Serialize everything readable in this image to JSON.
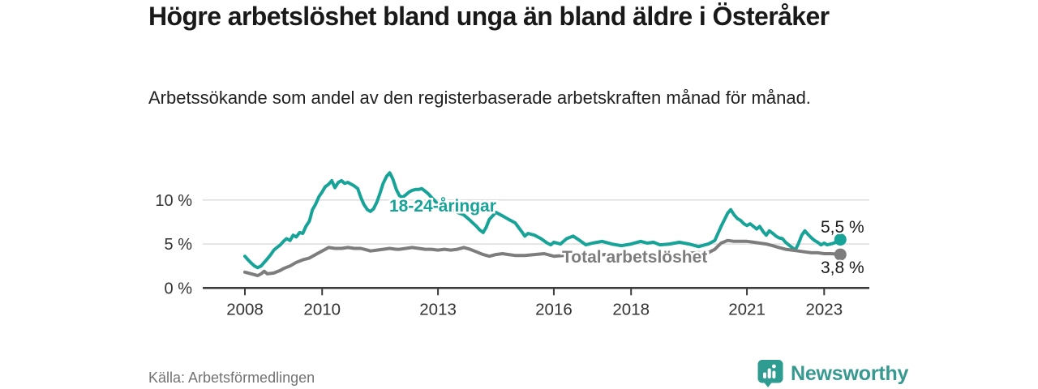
{
  "header": {
    "title": "Högre arbetslöshet bland unga än bland äldre i Österåker",
    "subtitle": "Arbetssökande som andel av den registerbaserade arbetskraften månad för månad."
  },
  "footer": {
    "source": "Källa: Arbetsförmedlingen",
    "brand": "Newsworthy",
    "logo_icon": "speech-bubble-barchart-icon"
  },
  "colors": {
    "young_series": "#17A398",
    "total_series": "#7D7D7D",
    "value_label": "#1A1A1A",
    "grid": "#DADADA",
    "axis": "#3D3D3D",
    "tick_text": "#333333",
    "title_text": "#191919",
    "source_text": "#737373",
    "brand_teal": "#2E9C90"
  },
  "chart_data": {
    "type": "line",
    "title": "Högre arbetslöshet bland unga än bland äldre i Österåker",
    "subtitle": "Arbetssökande som andel av den registerbaserade arbetskraften månad för månad.",
    "unit": "%",
    "grid": "horizontal-only",
    "xlim": [
      2007.6,
      2023.9
    ],
    "ylim": [
      0,
      13.8
    ],
    "x_ticks": [
      {
        "value": 2008,
        "label": "2008"
      },
      {
        "value": 2010,
        "label": "2010"
      },
      {
        "value": 2013,
        "label": "2013"
      },
      {
        "value": 2016,
        "label": "2016"
      },
      {
        "value": 2018,
        "label": "2018"
      },
      {
        "value": 2021,
        "label": "2021"
      },
      {
        "value": 2023,
        "label": "2023"
      }
    ],
    "y_ticks": [
      {
        "value": 0,
        "label": "0 %"
      },
      {
        "value": 5,
        "label": "5 %"
      },
      {
        "value": 10,
        "label": "10 %"
      }
    ],
    "series": [
      {
        "name": "18-24-åringar",
        "color": "#17A398",
        "end_value": 5.5,
        "end_label": "5,5 %",
        "points": [
          [
            2008.0,
            3.6
          ],
          [
            2008.08,
            3.2
          ],
          [
            2008.17,
            2.8
          ],
          [
            2008.25,
            2.5
          ],
          [
            2008.33,
            2.3
          ],
          [
            2008.42,
            2.5
          ],
          [
            2008.5,
            2.9
          ],
          [
            2008.58,
            3.3
          ],
          [
            2008.67,
            3.8
          ],
          [
            2008.75,
            4.3
          ],
          [
            2008.83,
            4.6
          ],
          [
            2008.92,
            4.9
          ],
          [
            2009.0,
            5.3
          ],
          [
            2009.08,
            5.6
          ],
          [
            2009.17,
            5.4
          ],
          [
            2009.25,
            6.0
          ],
          [
            2009.33,
            5.8
          ],
          [
            2009.42,
            6.3
          ],
          [
            2009.5,
            6.2
          ],
          [
            2009.58,
            7.0
          ],
          [
            2009.67,
            7.6
          ],
          [
            2009.75,
            8.9
          ],
          [
            2009.83,
            9.5
          ],
          [
            2009.92,
            10.4
          ],
          [
            2010.0,
            10.9
          ],
          [
            2010.08,
            11.5
          ],
          [
            2010.17,
            11.8
          ],
          [
            2010.25,
            12.2
          ],
          [
            2010.33,
            11.4
          ],
          [
            2010.42,
            12.0
          ],
          [
            2010.5,
            12.2
          ],
          [
            2010.58,
            11.9
          ],
          [
            2010.67,
            12.0
          ],
          [
            2010.75,
            11.8
          ],
          [
            2010.83,
            11.6
          ],
          [
            2010.92,
            11.3
          ],
          [
            2011.0,
            10.3
          ],
          [
            2011.08,
            9.5
          ],
          [
            2011.17,
            8.9
          ],
          [
            2011.25,
            8.7
          ],
          [
            2011.33,
            9.0
          ],
          [
            2011.42,
            9.8
          ],
          [
            2011.5,
            10.8
          ],
          [
            2011.58,
            11.9
          ],
          [
            2011.67,
            12.7
          ],
          [
            2011.75,
            13.1
          ],
          [
            2011.83,
            12.4
          ],
          [
            2011.92,
            11.2
          ],
          [
            2012.0,
            10.5
          ],
          [
            2012.08,
            10.3
          ],
          [
            2012.17,
            10.6
          ],
          [
            2012.25,
            10.9
          ],
          [
            2012.33,
            11.1
          ],
          [
            2012.42,
            11.2
          ],
          [
            2012.5,
            11.2
          ],
          [
            2012.58,
            11.3
          ],
          [
            2012.67,
            11.0
          ],
          [
            2012.75,
            10.7
          ],
          [
            2012.83,
            10.3
          ],
          [
            2012.92,
            9.9
          ],
          [
            2013.0,
            9.5
          ],
          [
            2013.17,
            9.3
          ],
          [
            2013.33,
            8.9
          ],
          [
            2013.5,
            8.6
          ],
          [
            2013.67,
            8.3
          ],
          [
            2013.83,
            7.7
          ],
          [
            2014.0,
            7.0
          ],
          [
            2014.08,
            6.6
          ],
          [
            2014.17,
            6.3
          ],
          [
            2014.25,
            6.9
          ],
          [
            2014.33,
            7.8
          ],
          [
            2014.5,
            8.6
          ],
          [
            2014.67,
            8.2
          ],
          [
            2014.83,
            7.8
          ],
          [
            2015.0,
            7.4
          ],
          [
            2015.17,
            6.4
          ],
          [
            2015.25,
            5.9
          ],
          [
            2015.33,
            6.2
          ],
          [
            2015.5,
            6.0
          ],
          [
            2015.67,
            5.6
          ],
          [
            2015.83,
            5.1
          ],
          [
            2015.92,
            4.9
          ],
          [
            2016.0,
            5.2
          ],
          [
            2016.17,
            5.0
          ],
          [
            2016.33,
            5.6
          ],
          [
            2016.5,
            5.9
          ],
          [
            2016.67,
            5.4
          ],
          [
            2016.83,
            4.9
          ],
          [
            2017.0,
            5.1
          ],
          [
            2017.25,
            5.3
          ],
          [
            2017.5,
            5.0
          ],
          [
            2017.75,
            4.8
          ],
          [
            2018.0,
            5.0
          ],
          [
            2018.25,
            5.3
          ],
          [
            2018.42,
            5.1
          ],
          [
            2018.58,
            5.2
          ],
          [
            2018.75,
            4.9
          ],
          [
            2019.0,
            5.0
          ],
          [
            2019.25,
            5.2
          ],
          [
            2019.5,
            5.0
          ],
          [
            2019.75,
            4.7
          ],
          [
            2019.92,
            4.9
          ],
          [
            2020.0,
            5.0
          ],
          [
            2020.17,
            5.4
          ],
          [
            2020.33,
            7.0
          ],
          [
            2020.5,
            8.5
          ],
          [
            2020.58,
            8.9
          ],
          [
            2020.67,
            8.3
          ],
          [
            2020.75,
            7.9
          ],
          [
            2020.83,
            7.7
          ],
          [
            2020.92,
            7.3
          ],
          [
            2021.0,
            7.1
          ],
          [
            2021.08,
            7.3
          ],
          [
            2021.17,
            7.0
          ],
          [
            2021.25,
            6.7
          ],
          [
            2021.33,
            7.0
          ],
          [
            2021.42,
            6.4
          ],
          [
            2021.5,
            6.0
          ],
          [
            2021.58,
            6.5
          ],
          [
            2021.67,
            6.2
          ],
          [
            2021.75,
            5.9
          ],
          [
            2021.83,
            5.7
          ],
          [
            2021.92,
            5.6
          ],
          [
            2022.0,
            5.2
          ],
          [
            2022.08,
            4.9
          ],
          [
            2022.17,
            4.6
          ],
          [
            2022.25,
            4.3
          ],
          [
            2022.33,
            5.0
          ],
          [
            2022.42,
            6.0
          ],
          [
            2022.5,
            6.5
          ],
          [
            2022.58,
            6.1
          ],
          [
            2022.67,
            5.7
          ],
          [
            2022.75,
            5.4
          ],
          [
            2022.83,
            5.2
          ],
          [
            2022.92,
            4.9
          ],
          [
            2023.0,
            5.1
          ],
          [
            2023.08,
            4.9
          ],
          [
            2023.17,
            5.0
          ],
          [
            2023.25,
            5.1
          ],
          [
            2023.33,
            5.3
          ],
          [
            2023.42,
            5.5
          ]
        ]
      },
      {
        "name": "Total arbetslöshet",
        "color": "#7D7D7D",
        "end_value": 3.8,
        "end_label": "3,8 %",
        "points": [
          [
            2008.0,
            1.8
          ],
          [
            2008.17,
            1.6
          ],
          [
            2008.33,
            1.4
          ],
          [
            2008.42,
            1.6
          ],
          [
            2008.5,
            1.9
          ],
          [
            2008.58,
            1.6
          ],
          [
            2008.75,
            1.7
          ],
          [
            2008.92,
            2.0
          ],
          [
            2009.0,
            2.2
          ],
          [
            2009.17,
            2.5
          ],
          [
            2009.33,
            2.9
          ],
          [
            2009.5,
            3.2
          ],
          [
            2009.67,
            3.4
          ],
          [
            2009.83,
            3.8
          ],
          [
            2010.0,
            4.2
          ],
          [
            2010.17,
            4.6
          ],
          [
            2010.33,
            4.5
          ],
          [
            2010.5,
            4.5
          ],
          [
            2010.67,
            4.6
          ],
          [
            2010.83,
            4.5
          ],
          [
            2011.0,
            4.5
          ],
          [
            2011.17,
            4.3
          ],
          [
            2011.25,
            4.2
          ],
          [
            2011.42,
            4.3
          ],
          [
            2011.58,
            4.4
          ],
          [
            2011.75,
            4.5
          ],
          [
            2011.92,
            4.4
          ],
          [
            2012.0,
            4.4
          ],
          [
            2012.17,
            4.5
          ],
          [
            2012.33,
            4.6
          ],
          [
            2012.5,
            4.5
          ],
          [
            2012.67,
            4.4
          ],
          [
            2012.83,
            4.4
          ],
          [
            2013.0,
            4.3
          ],
          [
            2013.17,
            4.4
          ],
          [
            2013.33,
            4.3
          ],
          [
            2013.5,
            4.4
          ],
          [
            2013.67,
            4.6
          ],
          [
            2013.83,
            4.4
          ],
          [
            2014.0,
            4.1
          ],
          [
            2014.17,
            3.8
          ],
          [
            2014.33,
            3.6
          ],
          [
            2014.5,
            3.8
          ],
          [
            2014.67,
            3.9
          ],
          [
            2014.83,
            3.8
          ],
          [
            2015.0,
            3.7
          ],
          [
            2015.25,
            3.7
          ],
          [
            2015.5,
            3.8
          ],
          [
            2015.75,
            3.9
          ],
          [
            2016.0,
            3.6
          ],
          [
            2016.25,
            3.7
          ],
          [
            2016.5,
            3.8
          ],
          [
            2016.75,
            3.7
          ],
          [
            2017.0,
            3.7
          ],
          [
            2017.33,
            3.8
          ],
          [
            2017.67,
            3.7
          ],
          [
            2018.0,
            3.6
          ],
          [
            2018.33,
            3.7
          ],
          [
            2018.67,
            3.6
          ],
          [
            2019.0,
            3.7
          ],
          [
            2019.33,
            3.9
          ],
          [
            2019.67,
            4.0
          ],
          [
            2020.0,
            4.0
          ],
          [
            2020.17,
            4.4
          ],
          [
            2020.33,
            5.1
          ],
          [
            2020.5,
            5.4
          ],
          [
            2020.67,
            5.3
          ],
          [
            2020.83,
            5.3
          ],
          [
            2021.0,
            5.3
          ],
          [
            2021.17,
            5.2
          ],
          [
            2021.33,
            5.1
          ],
          [
            2021.5,
            5.0
          ],
          [
            2021.67,
            4.8
          ],
          [
            2021.83,
            4.6
          ],
          [
            2022.0,
            4.4
          ],
          [
            2022.17,
            4.3
          ],
          [
            2022.33,
            4.2
          ],
          [
            2022.5,
            4.1
          ],
          [
            2022.67,
            4.0
          ],
          [
            2022.83,
            4.0
          ],
          [
            2023.0,
            3.9
          ],
          [
            2023.17,
            3.9
          ],
          [
            2023.33,
            3.85
          ],
          [
            2023.42,
            3.8
          ]
        ]
      }
    ],
    "legend_position": "inline-labels-on-lines"
  }
}
